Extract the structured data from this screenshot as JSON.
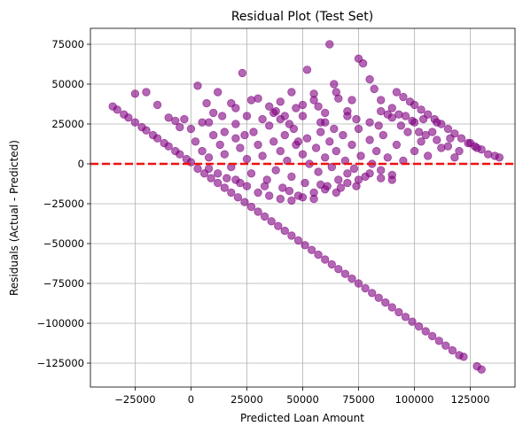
{
  "colors": {
    "points": "#800080",
    "reference_line": "#ee1111",
    "grid": "#b0b0b0",
    "background": "#ffffff"
  },
  "chart_data": {
    "type": "scatter",
    "title": "Residual Plot (Test Set)",
    "xlabel": "Predicted Loan Amount",
    "ylabel": "Residuals (Actual - Predicted)",
    "xlim": [
      -45000,
      145000
    ],
    "ylim": [
      -140000,
      85000
    ],
    "xticks": [
      -25000,
      0,
      25000,
      50000,
      75000,
      100000,
      125000
    ],
    "xtick_labels": [
      "−25000",
      "0",
      "25000",
      "50000",
      "75000",
      "100000",
      "125000"
    ],
    "yticks": [
      -125000,
      -100000,
      -75000,
      -50000,
      -25000,
      0,
      25000,
      50000,
      75000
    ],
    "ytick_labels": [
      "−125000",
      "−100000",
      "−75000",
      "−50000",
      "−25000",
      "0",
      "25000",
      "50000",
      "75000"
    ],
    "grid": true,
    "reference_line": {
      "y": 0,
      "style": "dashed",
      "color": "#ee1111"
    },
    "marker_alpha": 0.6,
    "series": [
      {
        "name": "",
        "points": [
          [
            -35000,
            36000
          ],
          [
            -33000,
            34000
          ],
          [
            -30000,
            31000
          ],
          [
            -28000,
            29000
          ],
          [
            -25000,
            26000
          ],
          [
            -22000,
            23000
          ],
          [
            -20000,
            21000
          ],
          [
            -17000,
            18000
          ],
          [
            -15000,
            16000
          ],
          [
            -12000,
            13000
          ],
          [
            -10000,
            11000
          ],
          [
            -7000,
            8000
          ],
          [
            -5000,
            6000
          ],
          [
            -2000,
            3000
          ],
          [
            0,
            1000
          ],
          [
            3000,
            -3000
          ],
          [
            6000,
            -6000
          ],
          [
            9000,
            -9000
          ],
          [
            12000,
            -12000
          ],
          [
            15000,
            -15000
          ],
          [
            18000,
            -18000
          ],
          [
            21000,
            -21000
          ],
          [
            24000,
            -24000
          ],
          [
            27000,
            -27000
          ],
          [
            30000,
            -30000
          ],
          [
            33000,
            -33000
          ],
          [
            36000,
            -36000
          ],
          [
            39000,
            -39000
          ],
          [
            42000,
            -42000
          ],
          [
            45000,
            -45000
          ],
          [
            48000,
            -48000
          ],
          [
            51000,
            -51000
          ],
          [
            54000,
            -54000
          ],
          [
            57000,
            -57000
          ],
          [
            60000,
            -60000
          ],
          [
            63000,
            -63000
          ],
          [
            66000,
            -66000
          ],
          [
            69000,
            -69000
          ],
          [
            72000,
            -72000
          ],
          [
            75000,
            -75000
          ],
          [
            78000,
            -78000
          ],
          [
            81000,
            -81000
          ],
          [
            84000,
            -84000
          ],
          [
            87000,
            -87000
          ],
          [
            90000,
            -90000
          ],
          [
            93000,
            -93000
          ],
          [
            96000,
            -96000
          ],
          [
            99000,
            -99000
          ],
          [
            102000,
            -102000
          ],
          [
            105000,
            -105000
          ],
          [
            108000,
            -108000
          ],
          [
            111000,
            -111000
          ],
          [
            114000,
            -114000
          ],
          [
            117000,
            -117000
          ],
          [
            120000,
            -120000
          ],
          [
            122000,
            -121000
          ],
          [
            128000,
            -127000
          ],
          [
            130000,
            -129000
          ],
          [
            92000,
            45000
          ],
          [
            95000,
            42000
          ],
          [
            98000,
            39000
          ],
          [
            100000,
            37000
          ],
          [
            103000,
            34000
          ],
          [
            106000,
            31000
          ],
          [
            109000,
            28000
          ],
          [
            112000,
            25000
          ],
          [
            115000,
            22000
          ],
          [
            118000,
            19000
          ],
          [
            121000,
            16000
          ],
          [
            124000,
            13000
          ],
          [
            127000,
            11000
          ],
          [
            130000,
            9000
          ],
          [
            133000,
            6000
          ],
          [
            136000,
            5000
          ],
          [
            138000,
            4000
          ],
          [
            -25000,
            44000
          ],
          [
            -20000,
            45000
          ],
          [
            -15000,
            37000
          ],
          [
            -10000,
            29000
          ],
          [
            -7000,
            27000
          ],
          [
            -5000,
            23000
          ],
          [
            -3000,
            28000
          ],
          [
            0,
            22000
          ],
          [
            3000,
            49000
          ],
          [
            5000,
            26000
          ],
          [
            7000,
            38000
          ],
          [
            10000,
            32000
          ],
          [
            12000,
            45000
          ],
          [
            15000,
            20000
          ],
          [
            18000,
            38000
          ],
          [
            20000,
            35000
          ],
          [
            23000,
            57000
          ],
          [
            25000,
            30000
          ],
          [
            27000,
            40000
          ],
          [
            30000,
            41000
          ],
          [
            32000,
            28000
          ],
          [
            35000,
            36000
          ],
          [
            37000,
            32000
          ],
          [
            40000,
            39000
          ],
          [
            42000,
            30000
          ],
          [
            45000,
            45000
          ],
          [
            47000,
            35000
          ],
          [
            50000,
            37000
          ],
          [
            52000,
            59000
          ],
          [
            55000,
            40000
          ],
          [
            57000,
            36000
          ],
          [
            60000,
            32000
          ],
          [
            62000,
            75000
          ],
          [
            64000,
            50000
          ],
          [
            66000,
            41000
          ],
          [
            70000,
            33000
          ],
          [
            72000,
            40000
          ],
          [
            75000,
            66000
          ],
          [
            77000,
            63000
          ],
          [
            80000,
            53000
          ],
          [
            82000,
            47000
          ],
          [
            85000,
            33000
          ],
          [
            88000,
            31000
          ],
          [
            90000,
            29000
          ],
          [
            93000,
            31000
          ],
          [
            96000,
            30000
          ],
          [
            99000,
            27000
          ],
          [
            102000,
            20000
          ],
          [
            105000,
            18000
          ],
          [
            110000,
            15000
          ],
          [
            115000,
            11000
          ],
          [
            120000,
            8000
          ],
          [
            125000,
            13000
          ],
          [
            128000,
            10000
          ],
          [
            2000,
            14000
          ],
          [
            5000,
            8000
          ],
          [
            8000,
            4000
          ],
          [
            10000,
            18000
          ],
          [
            13000,
            12000
          ],
          [
            15000,
            6000
          ],
          [
            18000,
            -2000
          ],
          [
            20000,
            16000
          ],
          [
            22000,
            10000
          ],
          [
            25000,
            3000
          ],
          [
            27000,
            -6000
          ],
          [
            28000,
            20000
          ],
          [
            30000,
            12000
          ],
          [
            32000,
            5000
          ],
          [
            34000,
            -10000
          ],
          [
            35000,
            24000
          ],
          [
            37000,
            14000
          ],
          [
            38000,
            -4000
          ],
          [
            40000,
            8000
          ],
          [
            41000,
            -15000
          ],
          [
            42000,
            18000
          ],
          [
            43000,
            2000
          ],
          [
            45000,
            -8000
          ],
          [
            46000,
            22000
          ],
          [
            47000,
            12000
          ],
          [
            48000,
            -20000
          ],
          [
            50000,
            6000
          ],
          [
            51000,
            -12000
          ],
          [
            52000,
            16000
          ],
          [
            53000,
            0
          ],
          [
            55000,
            -18000
          ],
          [
            56000,
            10000
          ],
          [
            57000,
            -5000
          ],
          [
            58000,
            20000
          ],
          [
            60000,
            4000
          ],
          [
            61000,
            -14000
          ],
          [
            62000,
            14000
          ],
          [
            63000,
            -2000
          ],
          [
            65000,
            8000
          ],
          [
            66000,
            -10000
          ],
          [
            68000,
            18000
          ],
          [
            69000,
            2000
          ],
          [
            70000,
            -6000
          ],
          [
            72000,
            12000
          ],
          [
            73000,
            -3000
          ],
          [
            75000,
            22000
          ],
          [
            76000,
            5000
          ],
          [
            78000,
            -8000
          ],
          [
            80000,
            15000
          ],
          [
            81000,
            0
          ],
          [
            83000,
            8000
          ],
          [
            85000,
            -4000
          ],
          [
            86000,
            18000
          ],
          [
            88000,
            4000
          ],
          [
            90000,
            -7000
          ],
          [
            92000,
            12000
          ],
          [
            95000,
            2000
          ],
          [
            97000,
            20000
          ],
          [
            100000,
            8000
          ],
          [
            103000,
            14000
          ],
          [
            106000,
            5000
          ],
          [
            108000,
            20000
          ],
          [
            112000,
            10000
          ],
          [
            116000,
            16000
          ],
          [
            118000,
            4000
          ],
          [
            20000,
            -10000
          ],
          [
            25000,
            -14000
          ],
          [
            30000,
            -18000
          ],
          [
            35000,
            -20000
          ],
          [
            40000,
            -22000
          ],
          [
            45000,
            -23000
          ],
          [
            50000,
            -21000
          ],
          [
            55000,
            -22000
          ],
          [
            60000,
            -16000
          ],
          [
            65000,
            -18000
          ],
          [
            70000,
            -12000
          ],
          [
            75000,
            -10000
          ],
          [
            80000,
            -6000
          ],
          [
            85000,
            -9000
          ],
          [
            90000,
            -10000
          ],
          [
            8000,
            -3000
          ],
          [
            12000,
            -6000
          ],
          [
            16000,
            -9000
          ],
          [
            22000,
            -12000
          ],
          [
            33000,
            -14000
          ],
          [
            44000,
            -17000
          ],
          [
            58000,
            -13000
          ],
          [
            67000,
            -15000
          ],
          [
            74000,
            -14000
          ],
          [
            20000,
            25000
          ],
          [
            40000,
            28000
          ],
          [
            60000,
            26000
          ],
          [
            80000,
            26000
          ],
          [
            100000,
            26000
          ],
          [
            70000,
            30000
          ],
          [
            50000,
            30000
          ],
          [
            90000,
            35000
          ],
          [
            65000,
            45000
          ],
          [
            85000,
            40000
          ],
          [
            55000,
            44000
          ],
          [
            38000,
            33000
          ],
          [
            8000,
            26000
          ],
          [
            14000,
            30000
          ],
          [
            24000,
            18000
          ],
          [
            44000,
            25000
          ],
          [
            48000,
            14000
          ],
          [
            58000,
            26000
          ],
          [
            64000,
            22000
          ],
          [
            74000,
            28000
          ],
          [
            84000,
            24000
          ],
          [
            94000,
            24000
          ],
          [
            104000,
            28000
          ],
          [
            110000,
            26000
          ]
        ]
      }
    ]
  }
}
